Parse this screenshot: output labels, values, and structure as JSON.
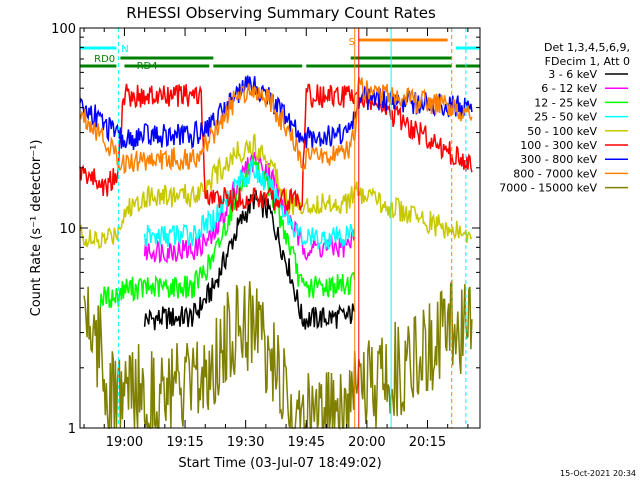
{
  "chart_data": {
    "type": "line",
    "title": "RHESSI Observing Summary Count Rates",
    "xlabel": "Start Time (03-Jul-07 18:49:02)",
    "ylabel": "Count Rate (s⁻¹ detector⁻¹)",
    "yscale": "log",
    "ylim": [
      1,
      100
    ],
    "xlim_minutes": [
      0,
      99
    ],
    "x_ticks": [
      {
        "t": 11,
        "label": "19:00"
      },
      {
        "t": 26,
        "label": "19:15"
      },
      {
        "t": 41,
        "label": "19:30"
      },
      {
        "t": 56,
        "label": "19:45"
      },
      {
        "t": 71,
        "label": "20:00"
      },
      {
        "t": 86,
        "label": "20:15"
      }
    ],
    "y_ticks": [
      {
        "v": 1,
        "label": "1"
      },
      {
        "v": 10,
        "label": "10"
      },
      {
        "v": 100,
        "label": "100"
      }
    ],
    "legend_header": [
      "Det 1,3,4,5,6,9,",
      "FDecim 1, Att 0"
    ],
    "legend_placement": "right",
    "timestamp": "15-Oct-2021 20:34",
    "flags": [
      {
        "label": "RD0",
        "color": "#008000"
      },
      {
        "label": "RD4",
        "color": "#008000"
      },
      {
        "label": "N",
        "color": "#00ffff"
      },
      {
        "label": "S",
        "color": "#ff8000"
      }
    ],
    "series": [
      {
        "name": "3 - 6 keV",
        "color": "#000000",
        "points": [
          [
            16,
            3.5
          ],
          [
            28,
            3.6
          ],
          [
            33,
            5
          ],
          [
            39,
            10
          ],
          [
            43,
            14
          ],
          [
            47,
            12
          ],
          [
            52,
            6
          ],
          [
            55,
            3.5
          ],
          [
            66,
            3.6
          ],
          [
            68,
            3.8
          ]
        ]
      },
      {
        "name": "6 - 12 keV",
        "color": "#ff00ff",
        "points": [
          [
            16,
            7.7
          ],
          [
            28,
            7.8
          ],
          [
            33,
            9
          ],
          [
            39,
            17
          ],
          [
            43,
            22
          ],
          [
            47,
            19
          ],
          [
            52,
            11
          ],
          [
            55,
            8
          ],
          [
            66,
            8
          ],
          [
            68,
            9
          ]
        ]
      },
      {
        "name": "12 - 25 keV",
        "color": "#00ff00",
        "points": [
          [
            5,
            4.5
          ],
          [
            9,
            4.5
          ],
          [
            11,
            5
          ],
          [
            16,
            5
          ],
          [
            28,
            5.1
          ],
          [
            33,
            7
          ],
          [
            39,
            15
          ],
          [
            43,
            20
          ],
          [
            47,
            16
          ],
          [
            52,
            8
          ],
          [
            55,
            5
          ],
          [
            66,
            5.2
          ],
          [
            68,
            5.5
          ]
        ]
      },
      {
        "name": "25 - 50 keV",
        "color": "#00ffff",
        "points": [
          [
            16,
            9
          ],
          [
            28,
            9.3
          ],
          [
            33,
            11
          ],
          [
            39,
            17
          ],
          [
            43,
            19.5
          ],
          [
            47,
            16
          ],
          [
            52,
            11
          ],
          [
            55,
            8.8
          ],
          [
            66,
            9
          ],
          [
            68,
            10
          ]
        ]
      },
      {
        "name": "50 - 100 keV",
        "color": "#c8c800",
        "points": [
          [
            0,
            9.5
          ],
          [
            3,
            8.5
          ],
          [
            5,
            8.5
          ],
          [
            9,
            9.5
          ],
          [
            11,
            12
          ],
          [
            16,
            14.5
          ],
          [
            28,
            14.5
          ],
          [
            33,
            18
          ],
          [
            39,
            24
          ],
          [
            43,
            26
          ],
          [
            47,
            22
          ],
          [
            52,
            13
          ],
          [
            55,
            13
          ],
          [
            66,
            13.5
          ],
          [
            68,
            15
          ],
          [
            96,
            9
          ],
          [
            97,
            9
          ]
        ]
      },
      {
        "name": "100 - 300 keV",
        "color": "#ff0000",
        "points": [
          [
            0,
            19
          ],
          [
            3,
            18
          ],
          [
            6,
            16
          ],
          [
            9,
            18
          ],
          [
            11,
            47
          ],
          [
            16,
            45
          ],
          [
            28,
            46
          ],
          [
            30,
            46
          ],
          [
            31,
            14
          ],
          [
            55,
            14
          ],
          [
            56,
            46
          ],
          [
            66,
            45
          ],
          [
            68,
            48
          ],
          [
            96,
            21
          ],
          [
            97,
            19
          ]
        ]
      },
      {
        "name": "300 - 800 keV",
        "color": "#0000ff",
        "points": [
          [
            0,
            40
          ],
          [
            3,
            38
          ],
          [
            6,
            33
          ],
          [
            9,
            29
          ],
          [
            11,
            27
          ],
          [
            16,
            29
          ],
          [
            28,
            29
          ],
          [
            33,
            34
          ],
          [
            39,
            48
          ],
          [
            43,
            52
          ],
          [
            47,
            45
          ],
          [
            52,
            33
          ],
          [
            55,
            28
          ],
          [
            66,
            30
          ],
          [
            68,
            35
          ],
          [
            69,
            45
          ],
          [
            96,
            40
          ],
          [
            97,
            38
          ]
        ]
      },
      {
        "name": "800 - 7000 keV",
        "color": "#ff8000",
        "points": [
          [
            0,
            38
          ],
          [
            3,
            33
          ],
          [
            6,
            28
          ],
          [
            9,
            23
          ],
          [
            11,
            21
          ],
          [
            16,
            22
          ],
          [
            28,
            22
          ],
          [
            33,
            29
          ],
          [
            39,
            46
          ],
          [
            43,
            51
          ],
          [
            47,
            43
          ],
          [
            52,
            29
          ],
          [
            55,
            22
          ],
          [
            66,
            24
          ],
          [
            68,
            30
          ],
          [
            69,
            50
          ],
          [
            96,
            38
          ],
          [
            97,
            36
          ]
        ]
      },
      {
        "name": "7000 - 15000 keV",
        "color": "#808000",
        "points": [
          [
            1,
            4.5
          ],
          [
            3,
            3.2
          ],
          [
            5,
            2.5
          ],
          [
            7,
            1.5
          ],
          [
            9,
            1.3
          ],
          [
            11,
            1.5
          ],
          [
            16,
            1.5
          ],
          [
            28,
            1.5
          ],
          [
            33,
            2.2
          ],
          [
            39,
            3.3
          ],
          [
            43,
            3.5
          ],
          [
            47,
            2.3
          ],
          [
            52,
            1.2
          ],
          [
            55,
            1.1
          ],
          [
            66,
            1.1
          ],
          [
            68,
            1.4
          ],
          [
            96,
            3.5
          ],
          [
            97,
            3.5
          ]
        ]
      }
    ]
  }
}
